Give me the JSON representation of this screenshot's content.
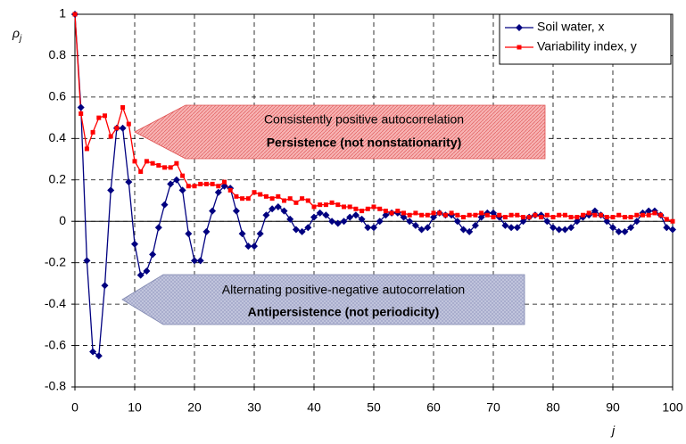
{
  "chart_data": {
    "type": "line",
    "x_label": "j",
    "y_label": {
      "text": "ρ",
      "subscript": "j"
    },
    "x": [
      0,
      1,
      2,
      3,
      4,
      5,
      6,
      7,
      8,
      9,
      10,
      11,
      12,
      13,
      14,
      15,
      16,
      17,
      18,
      19,
      20,
      21,
      22,
      23,
      24,
      25,
      26,
      27,
      28,
      29,
      30,
      31,
      32,
      33,
      34,
      35,
      36,
      37,
      38,
      39,
      40,
      41,
      42,
      43,
      44,
      45,
      46,
      47,
      48,
      49,
      50,
      51,
      52,
      53,
      54,
      55,
      56,
      57,
      58,
      59,
      60,
      61,
      62,
      63,
      64,
      65,
      66,
      67,
      68,
      69,
      70,
      71,
      72,
      73,
      74,
      75,
      76,
      77,
      78,
      79,
      80,
      81,
      82,
      83,
      84,
      85,
      86,
      87,
      88,
      89,
      90,
      91,
      92,
      93,
      94,
      95,
      96,
      97,
      98,
      99,
      100
    ],
    "series": [
      {
        "name": "Soil water, x",
        "color": "#000080",
        "marker": "diamond",
        "values": [
          1,
          0.55,
          -0.19,
          -0.63,
          -0.65,
          -0.31,
          0.15,
          0.45,
          0.45,
          0.19,
          -0.11,
          -0.26,
          -0.24,
          -0.16,
          -0.03,
          0.08,
          0.18,
          0.2,
          0.15,
          -0.06,
          -0.19,
          -0.19,
          -0.05,
          0.05,
          0.14,
          0.17,
          0.16,
          0.05,
          -0.06,
          -0.12,
          -0.12,
          -0.06,
          0.03,
          0.06,
          0.07,
          0.05,
          0.01,
          -0.04,
          -0.05,
          -0.03,
          0.02,
          0.04,
          0.03,
          0,
          -0.01,
          0,
          0.02,
          0.03,
          0.01,
          -0.03,
          -0.03,
          0,
          0.03,
          0.04,
          0.04,
          0.02,
          0,
          -0.02,
          -0.04,
          -0.03,
          0.02,
          0.04,
          0.03,
          0.03,
          0,
          -0.04,
          -0.05,
          -0.02,
          0.02,
          0.04,
          0.04,
          0.02,
          -0.02,
          -0.03,
          -0.03,
          0,
          0.02,
          0.03,
          0.03,
          0,
          -0.03,
          -0.04,
          -0.04,
          -0.03,
          0,
          0.02,
          0.03,
          0.05,
          0.03,
          0,
          -0.03,
          -0.05,
          -0.05,
          -0.03,
          0,
          0.04,
          0.05,
          0.05,
          0.03,
          -0.03,
          -0.04
        ]
      },
      {
        "name": "Variability index, y",
        "color": "#ff0000",
        "marker": "square",
        "values": [
          1,
          0.52,
          0.35,
          0.43,
          0.5,
          0.51,
          0.41,
          0.45,
          0.55,
          0.47,
          0.29,
          0.24,
          0.29,
          0.28,
          0.27,
          0.26,
          0.26,
          0.28,
          0.22,
          0.17,
          0.17,
          0.18,
          0.18,
          0.18,
          0.17,
          0.19,
          0.15,
          0.12,
          0.11,
          0.11,
          0.14,
          0.13,
          0.12,
          0.11,
          0.12,
          0.1,
          0.11,
          0.09,
          0.11,
          0.1,
          0.07,
          0.08,
          0.08,
          0.09,
          0.08,
          0.07,
          0.07,
          0.06,
          0.05,
          0.06,
          0.07,
          0.06,
          0.05,
          0.04,
          0.05,
          0.04,
          0.03,
          0.04,
          0.03,
          0.03,
          0.04,
          0.04,
          0.03,
          0.04,
          0.03,
          0.02,
          0.03,
          0.03,
          0.04,
          0.03,
          0.02,
          0.03,
          0.02,
          0.03,
          0.03,
          0.02,
          0.02,
          0.03,
          0.02,
          0.03,
          0.02,
          0.03,
          0.03,
          0.02,
          0.02,
          0.03,
          0.04,
          0.03,
          0.03,
          0.02,
          0.02,
          0.03,
          0.02,
          0.02,
          0.03,
          0.03,
          0.03,
          0.04,
          0.03,
          0.01,
          0
        ]
      }
    ],
    "xlim": [
      0,
      100
    ],
    "xticks": [
      0,
      10,
      20,
      30,
      40,
      50,
      60,
      70,
      80,
      90,
      100
    ],
    "ylim": [
      -0.8,
      1
    ],
    "yticks": [
      -0.8,
      -0.6,
      -0.4,
      -0.2,
      0,
      0.2,
      0.4,
      0.6,
      0.8,
      1
    ],
    "grid": true,
    "legend": "upper right",
    "annotations": [
      {
        "lines": [
          "Consistently positive autocorrelation",
          "Persistence (not nonstationarity)"
        ],
        "color": "#f4a0a0"
      },
      {
        "lines": [
          "Alternating positive-negative autocorrelation",
          "Antipersistence (not periodicity)"
        ],
        "color": "#b8bcd8"
      }
    ]
  }
}
